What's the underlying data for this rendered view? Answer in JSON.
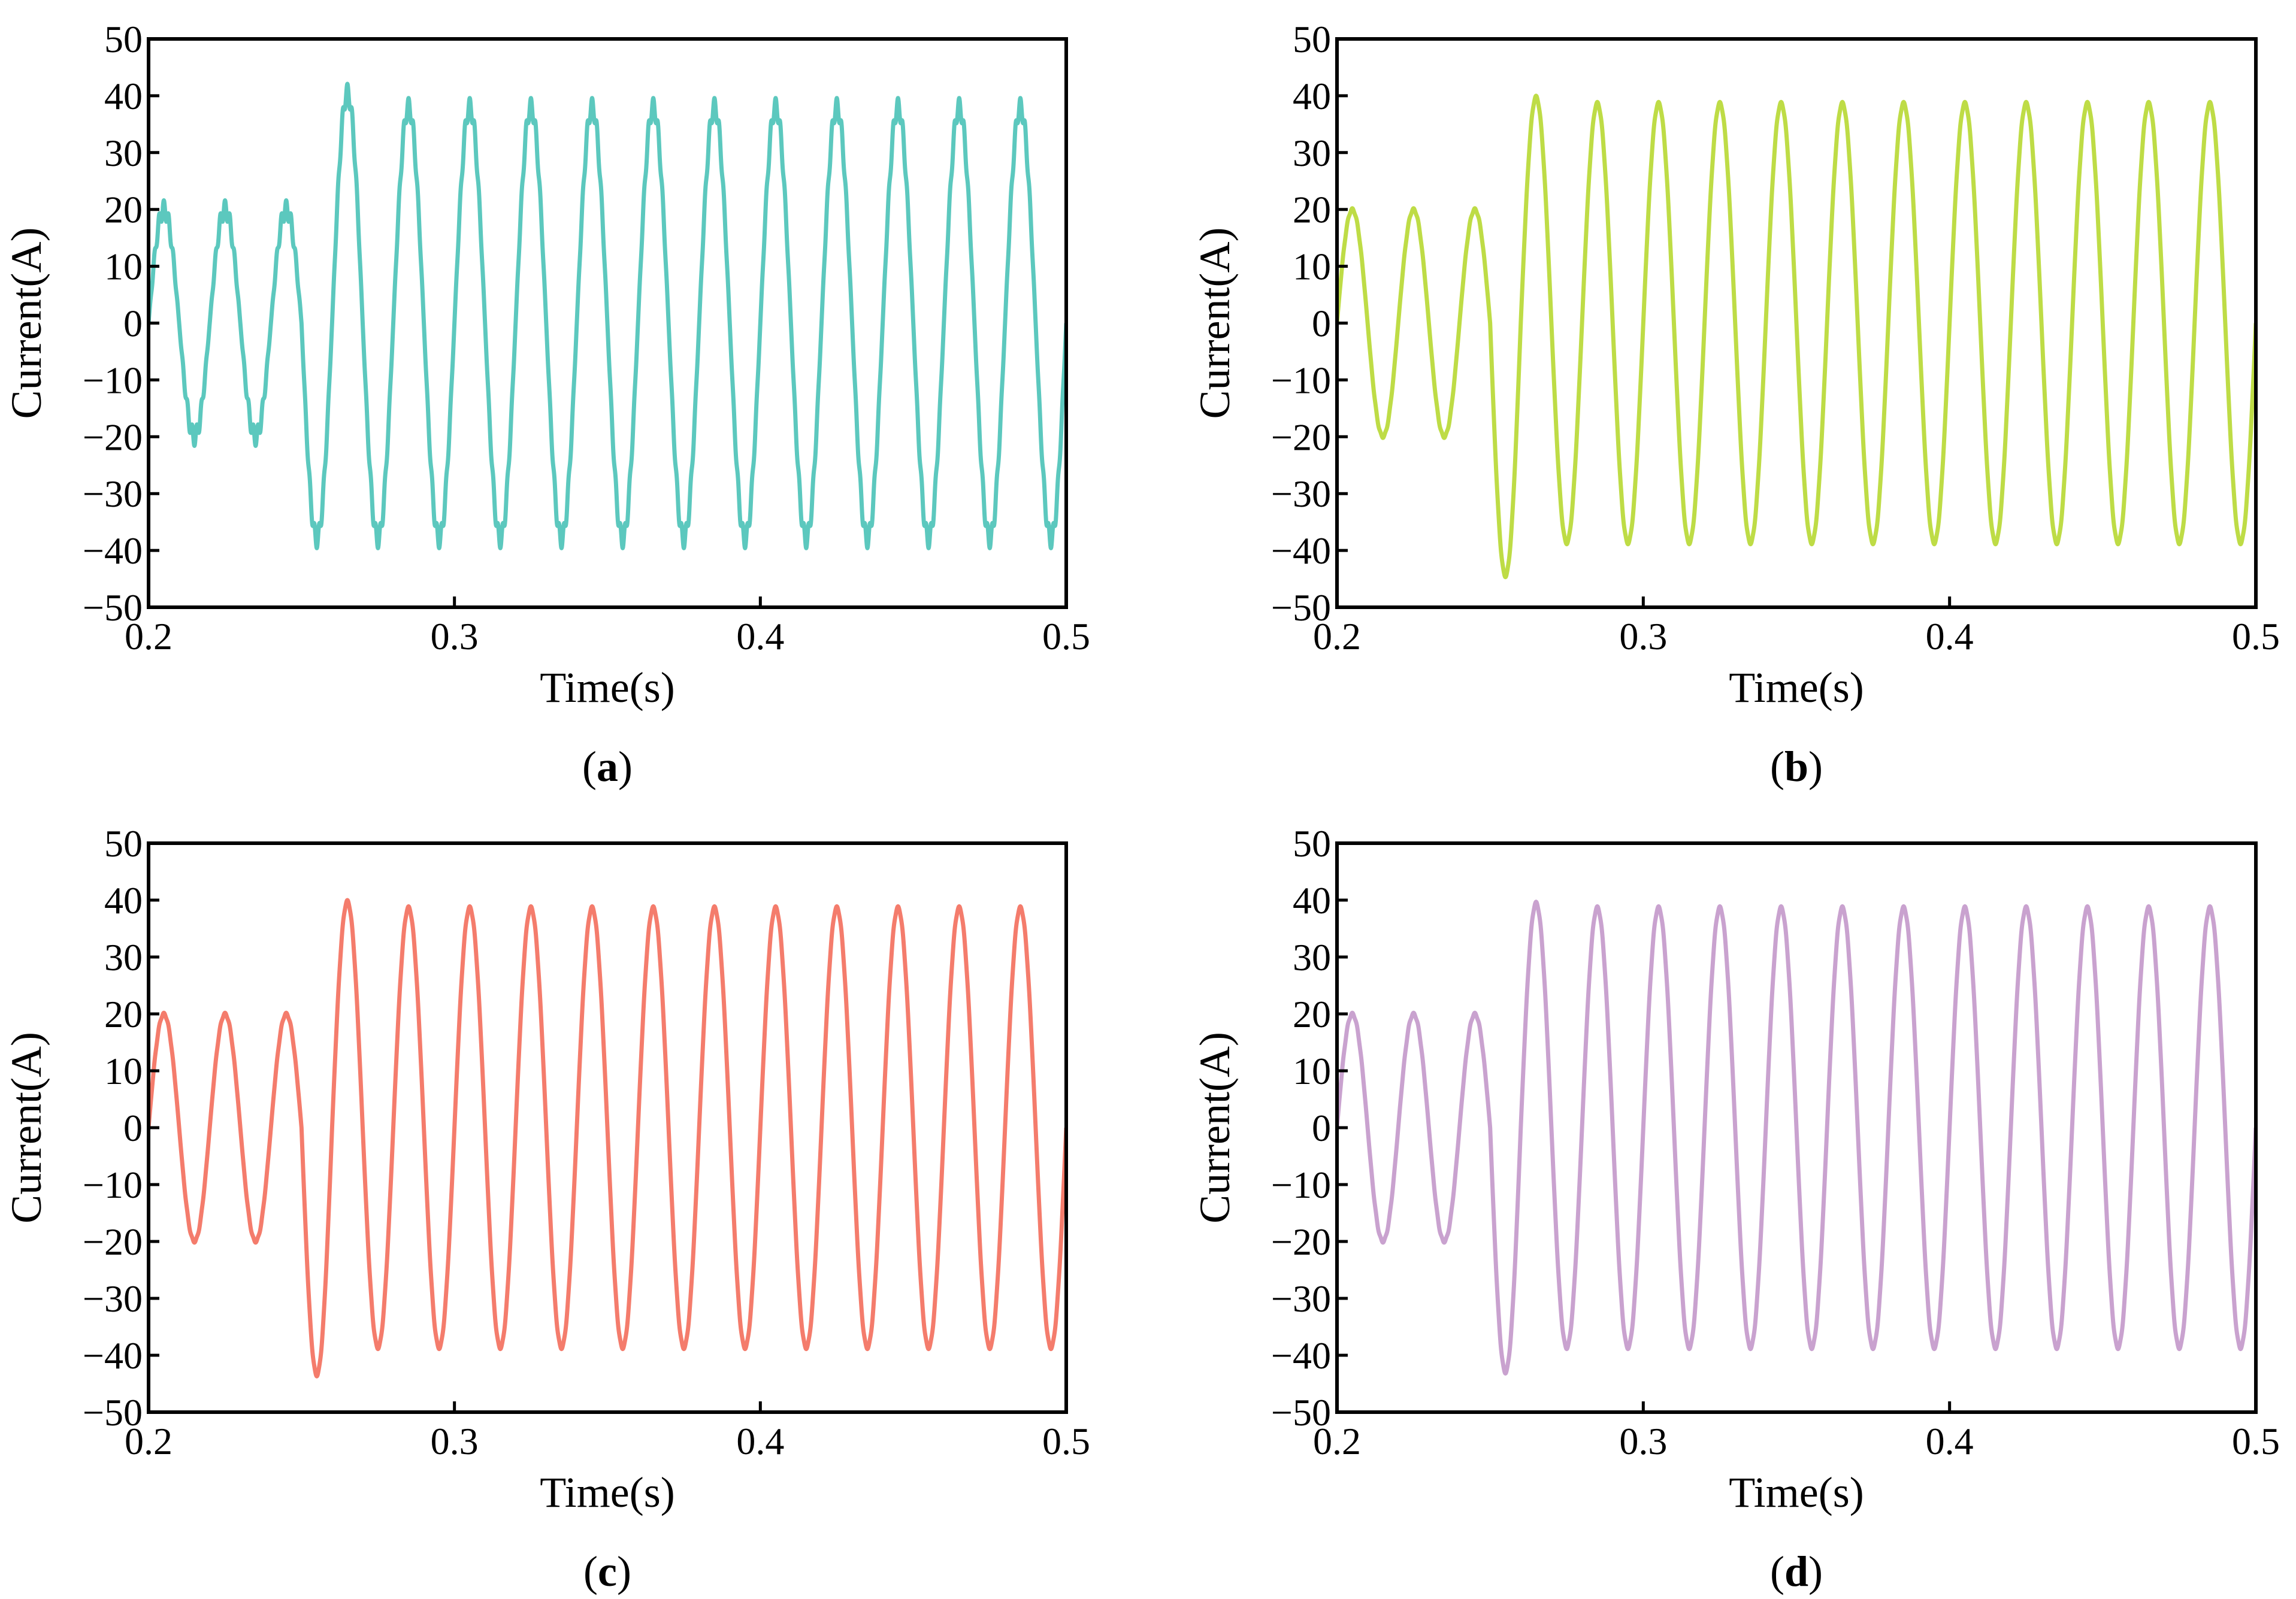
{
  "chart_data": [
    {
      "type": "line",
      "panel": "a",
      "caption_letter": "a",
      "xlabel": "Time(s)",
      "ylabel": "Current(A)",
      "xlim": [
        0.2,
        0.5
      ],
      "ylim": [
        -50,
        50
      ],
      "xticks": [
        0.2,
        0.3,
        0.4,
        0.5
      ],
      "xtick_labels": [
        "0.2",
        "0.3",
        "0.4",
        "0.5"
      ],
      "yticks": [
        50,
        40,
        30,
        20,
        10,
        0,
        -10,
        -20,
        -30,
        -40,
        -50
      ],
      "ytick_labels": [
        "50",
        "40",
        "30",
        "20",
        "10",
        "0",
        "−10",
        "−20",
        "−30",
        "−40",
        "−50"
      ],
      "color": "#5CC8BE",
      "series": [
        {
          "name": "current",
          "frequency_hz": 50,
          "step_time_s": 0.25,
          "amplitude_before_A": 20,
          "amplitude_after_A": 38,
          "first_peak_after_step_A": 40.5,
          "first_trough_after_step_A": -38,
          "ripple_A": 1.6
        }
      ]
    },
    {
      "type": "line",
      "panel": "b",
      "caption_letter": "b",
      "xlabel": "Time(s)",
      "ylabel": "Current(A)",
      "xlim": [
        0.2,
        0.5
      ],
      "ylim": [
        -50,
        50
      ],
      "xticks": [
        0.2,
        0.3,
        0.4,
        0.5
      ],
      "xtick_labels": [
        "0.2",
        "0.3",
        "0.4",
        "0.5"
      ],
      "yticks": [
        50,
        40,
        30,
        20,
        10,
        0,
        -10,
        -20,
        -30,
        -40,
        -50
      ],
      "ytick_labels": [
        "50",
        "40",
        "30",
        "20",
        "10",
        "0",
        "−10",
        "−20",
        "−30",
        "−40",
        "−50"
      ],
      "color": "#BEDC46",
      "series": [
        {
          "name": "current",
          "frequency_hz": 50,
          "step_time_s": 0.25,
          "amplitude_before_A": 20,
          "amplitude_after_A": 38.7,
          "first_peak_after_step_A": 39.8,
          "first_trough_after_step_A": -44.5,
          "ripple_A": 0.2
        }
      ]
    },
    {
      "type": "line",
      "panel": "c",
      "caption_letter": "c",
      "xlabel": "Time(s)",
      "ylabel": "Current(A)",
      "xlim": [
        0.2,
        0.5
      ],
      "ylim": [
        -50,
        50
      ],
      "xticks": [
        0.2,
        0.3,
        0.4,
        0.5
      ],
      "xtick_labels": [
        "0.2",
        "0.3",
        "0.4",
        "0.5"
      ],
      "yticks": [
        50,
        40,
        30,
        20,
        10,
        0,
        -10,
        -20,
        -30,
        -40,
        -50
      ],
      "ytick_labels": [
        "50",
        "40",
        "30",
        "20",
        "10",
        "0",
        "−10",
        "−20",
        "−30",
        "−40",
        "−50"
      ],
      "color": "#F47C6C",
      "series": [
        {
          "name": "current",
          "frequency_hz": 50,
          "step_time_s": 0.25,
          "amplitude_before_A": 20,
          "amplitude_after_A": 38.7,
          "first_peak_after_step_A": 39.8,
          "first_trough_after_step_A": -43.5,
          "ripple_A": 0.2
        }
      ]
    },
    {
      "type": "line",
      "panel": "d",
      "caption_letter": "d",
      "xlabel": "Time(s)",
      "ylabel": "Current(A)",
      "xlim": [
        0.2,
        0.5
      ],
      "ylim": [
        -50,
        50
      ],
      "xticks": [
        0.2,
        0.3,
        0.4,
        0.5
      ],
      "xtick_labels": [
        "0.2",
        "0.3",
        "0.4",
        "0.5"
      ],
      "yticks": [
        50,
        40,
        30,
        20,
        10,
        0,
        -10,
        -20,
        -30,
        -40,
        -50
      ],
      "ytick_labels": [
        "50",
        "40",
        "30",
        "20",
        "10",
        "0",
        "−10",
        "−20",
        "−30",
        "−40",
        "−50"
      ],
      "color": "#C9A2CF",
      "series": [
        {
          "name": "current",
          "frequency_hz": 50,
          "step_time_s": 0.25,
          "amplitude_before_A": 20,
          "amplitude_after_A": 38.7,
          "first_peak_after_step_A": 39.5,
          "first_trough_after_step_A": -43.0,
          "ripple_A": 0.2
        }
      ]
    }
  ]
}
